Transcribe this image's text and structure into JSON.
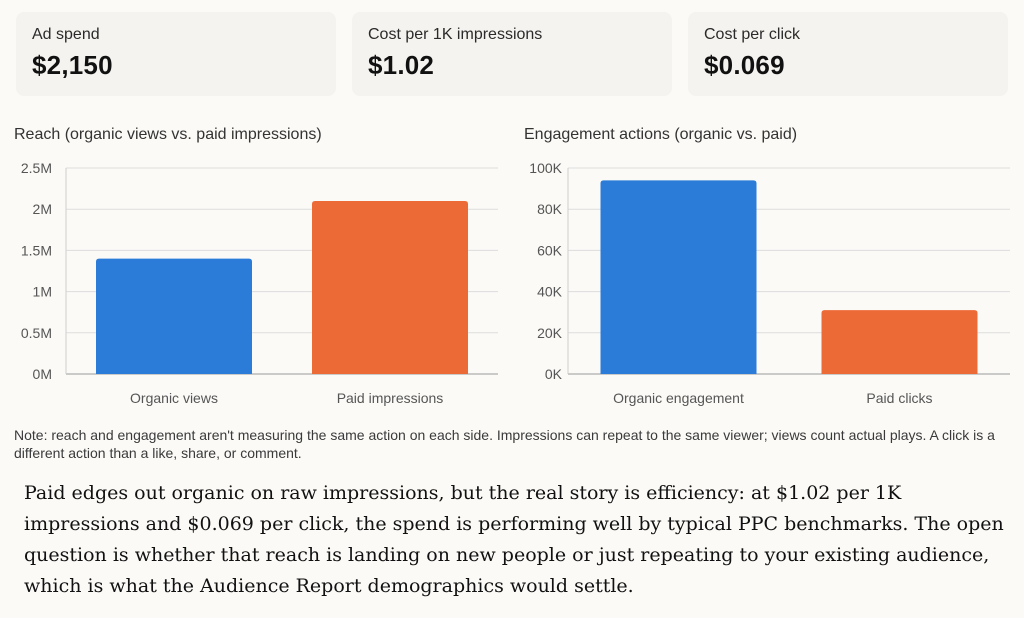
{
  "kpis": [
    {
      "label": "Ad spend",
      "value": "$2,150"
    },
    {
      "label": "Cost per 1K impressions",
      "value": "$1.02"
    },
    {
      "label": "Cost per click",
      "value": "$0.069"
    }
  ],
  "chart_data": [
    {
      "type": "bar",
      "title": "Reach (organic views vs. paid impressions)",
      "categories": [
        "Organic views",
        "Paid impressions"
      ],
      "values": [
        1400000,
        2100000
      ],
      "colors": [
        "#2b7bd8",
        "#ec6a36"
      ],
      "ylim": [
        0,
        2500000
      ],
      "yticks": [
        0,
        500000,
        1000000,
        1500000,
        2000000,
        2500000
      ],
      "ytick_labels": [
        "0M",
        "0.5M",
        "1M",
        "1.5M",
        "2M",
        "2.5M"
      ],
      "grid": true,
      "legend": "none"
    },
    {
      "type": "bar",
      "title": "Engagement actions (organic vs. paid)",
      "categories": [
        "Organic engagement",
        "Paid clicks"
      ],
      "values": [
        94000,
        31000
      ],
      "colors": [
        "#2b7bd8",
        "#ec6a36"
      ],
      "ylim": [
        0,
        100000
      ],
      "yticks": [
        0,
        20000,
        40000,
        60000,
        80000,
        100000
      ],
      "ytick_labels": [
        "0K",
        "20K",
        "40K",
        "60K",
        "80K",
        "100K"
      ],
      "grid": true,
      "legend": "none"
    }
  ],
  "note": "Note: reach and engagement aren't measuring the same action on each side. Impressions can repeat to the same viewer; views count actual plays. A click is a different action than a like, share, or comment.",
  "summary": "Paid edges out organic on raw impressions, but the real story is efficiency: at $1.02 per 1K impressions and $0.069 per click, the spend is performing well by typical PPC benchmarks. The open question is whether that reach is landing on new people or just repeating to your existing audience, which is what the Audience Report demographics would settle."
}
